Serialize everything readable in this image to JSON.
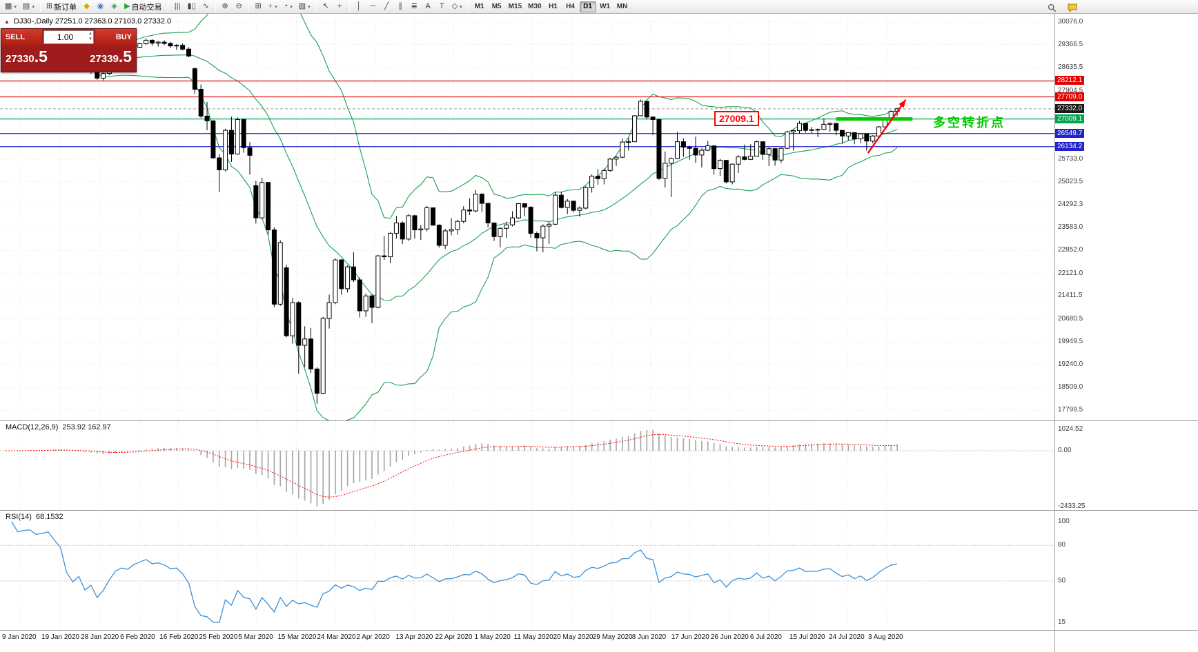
{
  "colors": {
    "up_candle": "#ffffff",
    "down_candle": "#000000",
    "candle_border": "#000000",
    "bollinger": "#18a04e",
    "macd_histogram": "#a8a8a8",
    "macd_signal": "#ff0000",
    "rsi_line": "#3c8fd4",
    "level_red": "#e60000",
    "level_green": "#00a650",
    "level_blue": "#2323cc",
    "level_black": "#1a1a1a",
    "annotation_green": "#00cc00",
    "annotation_red": "#ff0000"
  },
  "ui": {
    "panel_toggle": "▲",
    "spin_up": "▲",
    "spin_down": "▼",
    "dropdown_caret": "▾"
  },
  "toolbar": {
    "items": [
      {
        "name": "new-chart-button",
        "glyph": "▦",
        "dropdown": true
      },
      {
        "name": "profiles-button",
        "glyph": "▤",
        "dropdown": true
      },
      {
        "name": "sep1",
        "sep": true
      },
      {
        "name": "new-order-button",
        "glyph": "⊞",
        "glyph_color": "#b01010",
        "label": "新订单"
      },
      {
        "name": "metaeditor-button",
        "glyph": "◆",
        "glyph_color": "#d9a400"
      },
      {
        "name": "navigator-button",
        "glyph": "◉",
        "glyph_color": "#3b74c4"
      },
      {
        "name": "terminal-button",
        "glyph": "◈",
        "glyph_color": "#2f9e57"
      },
      {
        "name": "autotrading-button",
        "glyph": "▶",
        "glyph_color": "#1faa1f",
        "label": "自动交易"
      },
      {
        "name": "sep2",
        "sep": true
      },
      {
        "name": "bar-chart-button",
        "glyph": "|||"
      },
      {
        "name": "candlestick-button",
        "glyph": "▮▯"
      },
      {
        "name": "line-chart-button",
        "glyph": "∿"
      },
      {
        "name": "sep3",
        "sep": true
      },
      {
        "name": "zoom-in-button",
        "glyph": "⊕"
      },
      {
        "name": "zoom-out-button",
        "glyph": "⊖"
      },
      {
        "name": "sep4",
        "sep": true
      },
      {
        "name": "tile-windows-button",
        "glyph": "⊞"
      },
      {
        "name": "indicators-button",
        "glyph": "+",
        "glyph_color": "#1faa1f",
        "dropdown": true
      },
      {
        "name": "periods-button",
        "glyph": "◔",
        "dropdown": true
      },
      {
        "name": "templates-button",
        "glyph": "▧",
        "dropdown": true
      },
      {
        "name": "sep5",
        "sep": true
      },
      {
        "name": "cursor-button",
        "glyph": "↖"
      },
      {
        "name": "crosshair-button",
        "glyph": "+"
      },
      {
        "name": "sep6",
        "sep": true
      },
      {
        "name": "vertical-line-button",
        "glyph": "│"
      },
      {
        "name": "horizontal-line-button",
        "glyph": "─"
      },
      {
        "name": "trendline-button",
        "glyph": "╱"
      },
      {
        "name": "channel-button",
        "glyph": "∥"
      },
      {
        "name": "fibonacci-button",
        "glyph": "≣"
      },
      {
        "name": "text-button",
        "glyph": "A"
      },
      {
        "name": "label-button",
        "glyph": "T"
      },
      {
        "name": "shapes-button",
        "glyph": "◇",
        "dropdown": true
      },
      {
        "name": "sep7",
        "sep": true
      }
    ],
    "timeframes": [
      {
        "label": "M1"
      },
      {
        "label": "M5"
      },
      {
        "label": "M15"
      },
      {
        "label": "M30"
      },
      {
        "label": "H1"
      },
      {
        "label": "H4"
      },
      {
        "label": "D1",
        "active": true
      },
      {
        "label": "W1"
      },
      {
        "label": "MN"
      }
    ]
  },
  "chart": {
    "title": "DJ30-,Daily  27251.0 27363.0 27103.0 27332.0"
  },
  "trade_panel": {
    "sell_label": "SELL",
    "buy_label": "BUY",
    "volume": "1.00",
    "sell_price_main": "27330",
    "sell_price_frac": ".5",
    "buy_price_main": "27339",
    "buy_price_frac": ".5"
  },
  "chart_data": {
    "type": "candlestick",
    "symbol": "DJ30-",
    "period": "Daily",
    "y_range": [
      17799.5,
      30076.0
    ],
    "y_axis": [
      {
        "label": "30076.0",
        "price": 30076.0
      },
      {
        "label": "29366.5",
        "price": 29366.5
      },
      {
        "label": "28635.5",
        "price": 28635.5
      },
      {
        "label": "27904.5",
        "price": 27904.5
      },
      {
        "label": "25733.0",
        "price": 25733.0
      },
      {
        "label": "25023.5",
        "price": 25023.5
      },
      {
        "label": "24292.3",
        "price": 24292.3
      },
      {
        "label": "23583.0",
        "price": 23583.0
      },
      {
        "label": "22852.0",
        "price": 22852.0
      },
      {
        "label": "22121.0",
        "price": 22121.0
      },
      {
        "label": "21411.5",
        "price": 21411.5
      },
      {
        "label": "20680.5",
        "price": 20680.5
      },
      {
        "label": "19949.5",
        "price": 19949.5
      },
      {
        "label": "19240.0",
        "price": 19240.0
      },
      {
        "label": "18509.0",
        "price": 18509.0
      },
      {
        "label": "17799.5",
        "price": 17799.5
      }
    ],
    "levels": [
      {
        "label": "28212.1",
        "price": 28212.1,
        "color": "red"
      },
      {
        "label": "27709.0",
        "price": 27709.0,
        "color": "red"
      },
      {
        "label": "27332.0",
        "price": 27332.0,
        "color": "black",
        "current": true
      },
      {
        "label": "27009.1",
        "price": 27009.1,
        "color": "green"
      },
      {
        "label": "26549.7",
        "price": 26549.7,
        "color": "blue"
      },
      {
        "label": "26134.2",
        "price": 26134.2,
        "color": "blue"
      }
    ],
    "x_axis": [
      "9 Jan 2020",
      "19 Jan 2020",
      "28 Jan 2020",
      "6 Feb 2020",
      "16 Feb 2020",
      "25 Feb 2020",
      "5 Mar 2020",
      "15 Mar 2020",
      "24 Mar 2020",
      "2 Apr 2020",
      "13 Apr 2020",
      "22 Apr 2020",
      "1 May 2020",
      "11 May 2020",
      "20 May 2020",
      "29 May 2020",
      "8 Jun 2020",
      "17 Jun 2020",
      "26 Jun 2020",
      "6 Jul 2020",
      "15 Jul 2020",
      "24 Jul 2020",
      "3 Aug 2020"
    ],
    "indicators": {
      "bollinger": {
        "period": 20,
        "deviation": 2
      },
      "macd": {
        "name": "MACD(12,26,9)",
        "values": "253.92 162.97",
        "params": [
          12,
          26,
          9
        ],
        "scale": [
          "1024.52",
          "0.00",
          "-2433.25"
        ]
      },
      "rsi": {
        "name": "RSI(14)",
        "value": "68.1532",
        "period": 14,
        "levels": [
          80,
          50
        ],
        "scale": [
          "100",
          "80",
          "50",
          "15"
        ]
      }
    },
    "annotations": {
      "callout_text": "27009.1",
      "turning_text": "多空转折点",
      "support_segment": {
        "from_bar": 136,
        "to_bar": 148.5,
        "price": 27009.1
      },
      "arrow": {
        "from_bar": 141.2,
        "from_price": 25930,
        "to_bar": 147.4,
        "to_price": 27620
      }
    },
    "candles": [
      [
        28950,
        29030,
        28890,
        29010
      ],
      [
        29010,
        29090,
        28960,
        29060
      ],
      [
        29060,
        29100,
        28980,
        29000
      ],
      [
        29000,
        29120,
        28970,
        29100
      ],
      [
        29100,
        29180,
        29050,
        29150
      ],
      [
        29150,
        29220,
        29080,
        29120
      ],
      [
        29120,
        29200,
        29060,
        29180
      ],
      [
        29180,
        29300,
        29150,
        29280
      ],
      [
        29280,
        29330,
        29180,
        29220
      ],
      [
        29220,
        29280,
        29120,
        29160
      ],
      [
        29160,
        29190,
        28850,
        28890
      ],
      [
        28890,
        28960,
        28700,
        28740
      ],
      [
        28740,
        28870,
        28660,
        28840
      ],
      [
        28840,
        28890,
        28520,
        28560
      ],
      [
        28560,
        28680,
        28440,
        28650
      ],
      [
        28650,
        28720,
        28250,
        28300
      ],
      [
        28300,
        28480,
        28230,
        28450
      ],
      [
        28450,
        28760,
        28400,
        28720
      ],
      [
        28720,
        29060,
        28700,
        29010
      ],
      [
        29010,
        29180,
        28950,
        29130
      ],
      [
        29130,
        29200,
        29020,
        29100
      ],
      [
        29100,
        29300,
        29080,
        29280
      ],
      [
        29280,
        29420,
        29250,
        29390
      ],
      [
        29390,
        29560,
        29350,
        29500
      ],
      [
        29500,
        29530,
        29330,
        29410
      ],
      [
        29410,
        29480,
        29300,
        29440
      ],
      [
        29440,
        29500,
        29350,
        29400
      ],
      [
        29400,
        29450,
        29250,
        29320
      ],
      [
        29320,
        29380,
        29200,
        29340
      ],
      [
        29340,
        29400,
        29180,
        29220
      ],
      [
        29220,
        29280,
        28960,
        29000
      ],
      [
        28600,
        28650,
        27800,
        27950
      ],
      [
        27950,
        28100,
        27050,
        27100
      ],
      [
        27100,
        27550,
        26650,
        26950
      ],
      [
        26950,
        26970,
        25750,
        25780
      ],
      [
        25780,
        25900,
        24700,
        25400
      ],
      [
        25400,
        26700,
        25350,
        26650
      ],
      [
        26650,
        27080,
        25650,
        25900
      ],
      [
        25900,
        27060,
        25880,
        26990
      ],
      [
        26990,
        27020,
        25940,
        26100
      ],
      [
        26100,
        26280,
        25250,
        25860
      ],
      [
        24900,
        25050,
        23700,
        23880
      ],
      [
        23880,
        25150,
        23850,
        25000
      ],
      [
        25000,
        25020,
        23350,
        23500
      ],
      [
        23500,
        23580,
        21050,
        21150
      ],
      [
        21150,
        23170,
        21100,
        23100
      ],
      [
        22300,
        22400,
        20100,
        20150
      ],
      [
        20150,
        21350,
        19900,
        21200
      ],
      [
        21200,
        21240,
        18950,
        19850
      ],
      [
        19850,
        20450,
        19150,
        20050
      ],
      [
        20050,
        20400,
        18970,
        19100
      ],
      [
        19100,
        19150,
        18000,
        18330
      ],
      [
        18330,
        20750,
        18300,
        20700
      ],
      [
        20700,
        21450,
        20380,
        21200
      ],
      [
        21200,
        22600,
        21150,
        22550
      ],
      [
        22550,
        22580,
        21450,
        21640
      ],
      [
        21640,
        22380,
        21520,
        22330
      ],
      [
        22330,
        22790,
        21850,
        21920
      ],
      [
        21920,
        22000,
        20730,
        20940
      ],
      [
        20940,
        21490,
        20750,
        21410
      ],
      [
        21410,
        21460,
        20550,
        21050
      ],
      [
        21050,
        22710,
        21020,
        22680
      ],
      [
        22680,
        23310,
        22550,
        22650
      ],
      [
        22650,
        23440,
        22450,
        23390
      ],
      [
        23390,
        23940,
        23220,
        23720
      ],
      [
        23720,
        23770,
        23050,
        23210
      ],
      [
        23210,
        24000,
        23150,
        23950
      ],
      [
        23950,
        23980,
        23230,
        23500
      ],
      [
        23500,
        23650,
        23180,
        23530
      ],
      [
        23530,
        24260,
        23450,
        24200
      ],
      [
        24200,
        24210,
        23630,
        23650
      ],
      [
        23650,
        23680,
        22940,
        23010
      ],
      [
        23010,
        23530,
        22900,
        23470
      ],
      [
        23470,
        23870,
        23330,
        23510
      ],
      [
        23510,
        23820,
        23350,
        23770
      ],
      [
        23770,
        24250,
        23710,
        24130
      ],
      [
        24130,
        24500,
        23970,
        24100
      ],
      [
        24100,
        24760,
        24060,
        24630
      ],
      [
        24630,
        24660,
        24070,
        24340
      ],
      [
        24340,
        24350,
        23580,
        23720
      ],
      [
        23720,
        23730,
        23150,
        23290
      ],
      [
        23290,
        23580,
        22950,
        23550
      ],
      [
        23550,
        23760,
        23250,
        23660
      ],
      [
        23660,
        24090,
        23610,
        23880
      ],
      [
        23880,
        24350,
        23850,
        24330
      ],
      [
        24330,
        24340,
        23940,
        24220
      ],
      [
        24220,
        24250,
        23250,
        23390
      ],
      [
        23390,
        23450,
        22820,
        23250
      ],
      [
        23250,
        23680,
        22790,
        23620
      ],
      [
        23620,
        23750,
        23050,
        23680
      ],
      [
        23680,
        24700,
        23650,
        24600
      ],
      [
        24600,
        24710,
        24180,
        24210
      ],
      [
        24210,
        24480,
        24000,
        24410
      ],
      [
        24410,
        24420,
        24050,
        24120
      ],
      [
        24120,
        24240,
        23920,
        24190
      ],
      [
        24190,
        24880,
        24150,
        24840
      ],
      [
        24840,
        25250,
        24680,
        25200
      ],
      [
        25200,
        25420,
        24930,
        25120
      ],
      [
        25120,
        25440,
        24940,
        25380
      ],
      [
        25380,
        25780,
        25340,
        25740
      ],
      [
        25740,
        25840,
        25520,
        25800
      ],
      [
        25800,
        26390,
        25770,
        26280
      ],
      [
        26280,
        26420,
        26010,
        26290
      ],
      [
        26290,
        27130,
        26280,
        27110
      ],
      [
        27110,
        27620,
        27090,
        27570
      ],
      [
        27570,
        27590,
        26990,
        27070
      ],
      [
        27070,
        27100,
        26500,
        26990
      ],
      [
        26990,
        27000,
        25080,
        25130
      ],
      [
        25130,
        25980,
        24840,
        25610
      ],
      [
        25610,
        25790,
        24540,
        25760
      ],
      [
        25760,
        26600,
        25740,
        26290
      ],
      [
        26290,
        26400,
        25810,
        26120
      ],
      [
        26120,
        26170,
        25720,
        26080
      ],
      [
        26080,
        26450,
        25620,
        25870
      ],
      [
        25870,
        26080,
        25480,
        26020
      ],
      [
        26020,
        26310,
        25990,
        26160
      ],
      [
        26160,
        26170,
        25250,
        25440
      ],
      [
        25440,
        25750,
        25210,
        25700
      ],
      [
        25700,
        25710,
        24970,
        25020
      ],
      [
        25020,
        25600,
        24940,
        25580
      ],
      [
        25580,
        25860,
        25300,
        25810
      ],
      [
        25810,
        26200,
        25700,
        25730
      ],
      [
        25730,
        26210,
        25710,
        25830
      ],
      [
        25830,
        26330,
        25820,
        26290
      ],
      [
        26290,
        26300,
        25720,
        25890
      ],
      [
        25890,
        26110,
        25520,
        26070
      ],
      [
        26070,
        26090,
        25530,
        25710
      ],
      [
        25710,
        26110,
        25620,
        26080
      ],
      [
        26080,
        26640,
        26070,
        26600
      ],
      [
        26600,
        26680,
        26010,
        26640
      ],
      [
        26640,
        26950,
        26550,
        26870
      ],
      [
        26870,
        26890,
        26580,
        26650
      ],
      [
        26650,
        26760,
        26550,
        26670
      ],
      [
        26670,
        26710,
        26440,
        26680
      ],
      [
        26680,
        27030,
        26660,
        26840
      ],
      [
        26840,
        26900,
        26610,
        26870
      ],
      [
        26870,
        26880,
        26490,
        26650
      ],
      [
        26650,
        26660,
        26230,
        26470
      ],
      [
        26470,
        26580,
        26330,
        26580
      ],
      [
        26580,
        26590,
        26210,
        26380
      ],
      [
        26380,
        26560,
        26250,
        26540
      ],
      [
        26540,
        26550,
        26010,
        26310
      ],
      [
        26310,
        26500,
        26240,
        26470
      ],
      [
        26470,
        26790,
        26450,
        26760
      ],
      [
        26760,
        27070,
        26740,
        27030
      ],
      [
        27030,
        27280,
        26960,
        27251
      ],
      [
        27251,
        27363,
        27103,
        27332
      ]
    ]
  }
}
